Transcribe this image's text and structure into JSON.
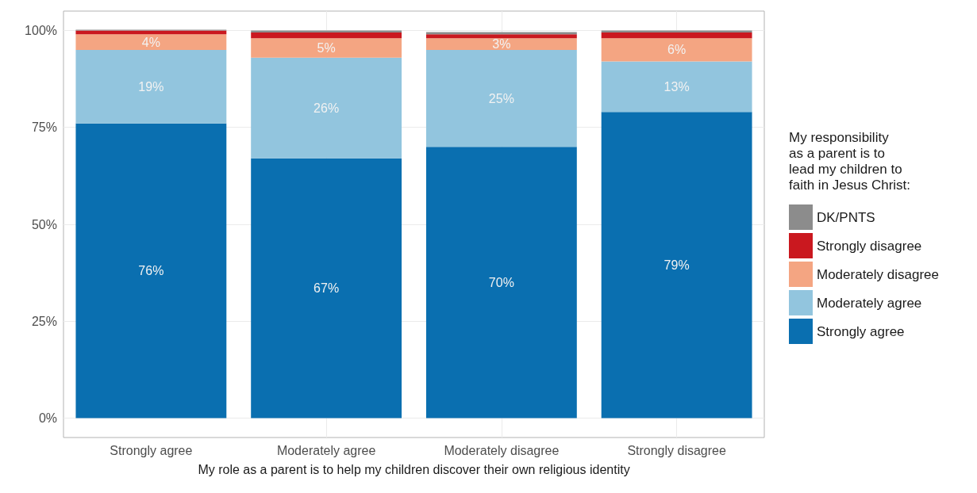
{
  "chart_data": {
    "type": "bar",
    "stacked": true,
    "xlabel": "My role as a parent is to help my children discover their own religious identity",
    "legend_title": "My responsibility\nas a parent is to\nlead my children to\nfaith in Jesus Christ:",
    "categories": [
      "Strongly agree",
      "Moderately agree",
      "Moderately disagree",
      "Strongly disagree"
    ],
    "series": [
      {
        "name": "Strongly agree",
        "color": "#0a6fb0",
        "values": [
          76,
          67,
          70,
          79
        ],
        "value_labels": [
          "76%",
          "67%",
          "70%",
          "79%"
        ]
      },
      {
        "name": "Moderately agree",
        "color": "#92c5de",
        "values": [
          19,
          26,
          25,
          13
        ],
        "value_labels": [
          "19%",
          "26%",
          "25%",
          "13%"
        ]
      },
      {
        "name": "Moderately disagree",
        "color": "#f4a582",
        "values": [
          4,
          5,
          3,
          6
        ],
        "value_labels": [
          "4%",
          "5%",
          "3%",
          "6%"
        ]
      },
      {
        "name": "Strongly disagree",
        "color": "#ca181f",
        "values": [
          1,
          1.5,
          1,
          1.5
        ],
        "value_labels": [
          null,
          null,
          null,
          null
        ]
      },
      {
        "name": "DK/PNTS",
        "color": "#8c8c8c",
        "values": [
          0.2,
          0.5,
          0.6,
          0.5
        ],
        "value_labels": [
          null,
          null,
          null,
          null
        ]
      }
    ],
    "ylim": [
      -5,
      105
    ],
    "yticks": [
      {
        "value": 0,
        "label": "0%"
      },
      {
        "value": 25,
        "label": "25%"
      },
      {
        "value": 50,
        "label": "50%"
      },
      {
        "value": 75,
        "label": "75%"
      },
      {
        "value": 100,
        "label": "100%"
      }
    ],
    "grid": true,
    "legend": "right"
  }
}
